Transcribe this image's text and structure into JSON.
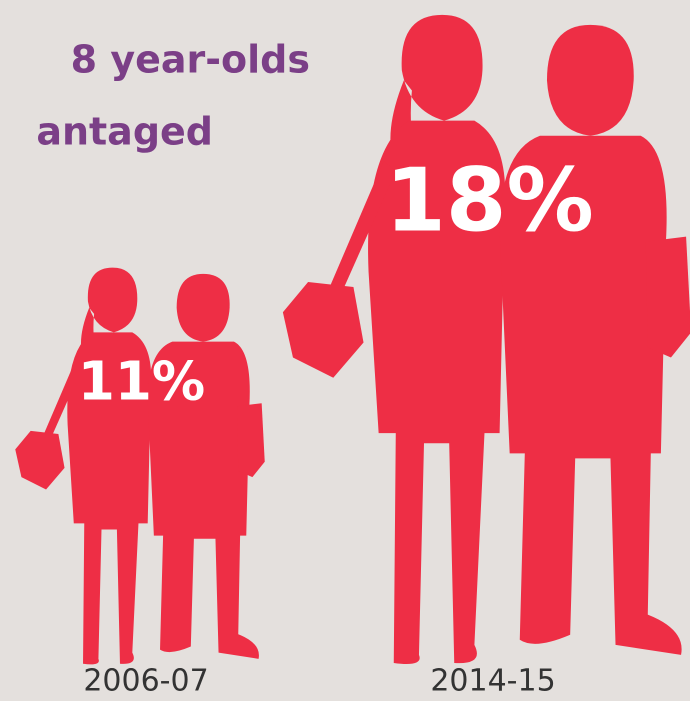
{
  "chart_data": {
    "type": "pictogram",
    "title": [
      "8 year-olds",
      "antaged"
    ],
    "categories": [
      "2006-07",
      "2014-15"
    ],
    "values": [
      11,
      18
    ],
    "value_labels": [
      "11%",
      "18%"
    ],
    "color": "#ee2e45"
  }
}
